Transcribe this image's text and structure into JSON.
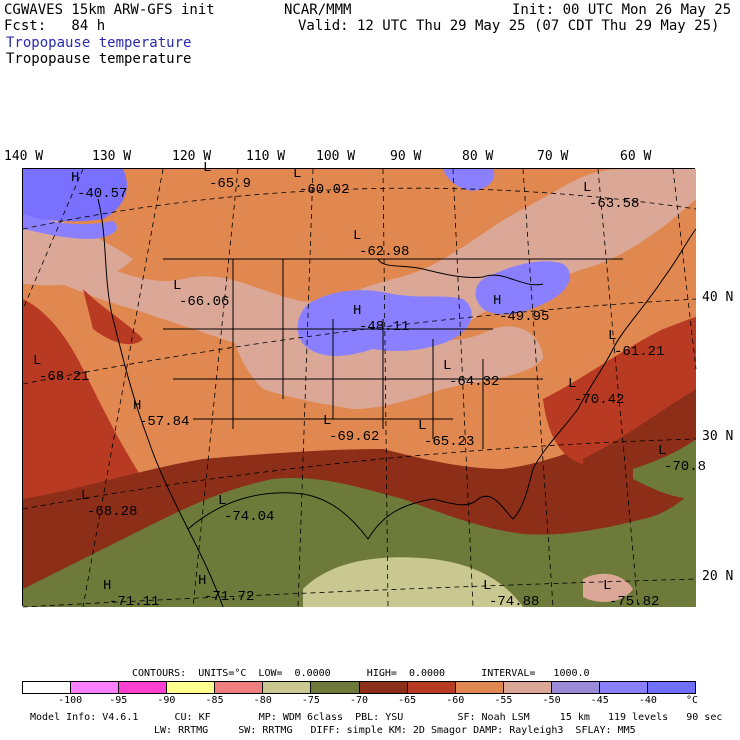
{
  "header": {
    "line1_left": "CGWAVES 15km ARW-GFS init",
    "line1_mid": "NCAR/MMM",
    "line1_right": "Init: 00 UTC Mon 26 May 25",
    "line2_left": "Fcst:   84 h",
    "line2_right": "Valid: 12 UTC Thu 29 May 25 (07 CDT Thu 29 May 25)",
    "field_title_1": "Tropopause temperature",
    "field_title_2": "Tropopause temperature"
  },
  "longitude_labels": [
    "140 W",
    "130 W",
    "120 W",
    "110 W",
    "100 W",
    "90 W",
    "80 W",
    "70 W",
    "60 W"
  ],
  "latitude_labels": [
    "40 N",
    "30 N",
    "20 N"
  ],
  "map_labels": [
    {
      "kind": "H",
      "value": "-40.57"
    },
    {
      "kind": "L",
      "value": "-65.9"
    },
    {
      "kind": "L",
      "value": "-60.02"
    },
    {
      "kind": "L",
      "value": "-62.98"
    },
    {
      "kind": "L",
      "value": "-63.58"
    },
    {
      "kind": "L",
      "value": "-66.06"
    },
    {
      "kind": "H",
      "value": "-48.11"
    },
    {
      "kind": "H",
      "value": "-49.95"
    },
    {
      "kind": "L",
      "value": "-61.21"
    },
    {
      "kind": "L",
      "value": "-68.21"
    },
    {
      "kind": "L",
      "value": "-64.32"
    },
    {
      "kind": "H",
      "value": "-57.84"
    },
    {
      "kind": "L",
      "value": "-70.42"
    },
    {
      "kind": "L",
      "value": "-69.62"
    },
    {
      "kind": "L",
      "value": "-65.23"
    },
    {
      "kind": "L",
      "value": "-70.8"
    },
    {
      "kind": "L",
      "value": "-68.28"
    },
    {
      "kind": "L",
      "value": "-74.04"
    },
    {
      "kind": "H",
      "value": "-71.11"
    },
    {
      "kind": "H",
      "value": "-71.72"
    },
    {
      "kind": "L",
      "value": "-74.88"
    },
    {
      "kind": "L",
      "value": "-75.82"
    }
  ],
  "contour_info": "CONTOURS:  UNITS=°C  LOW=  0.0000      HIGH=  0.0000      INTERVAL=   1000.0",
  "colorbar": {
    "colors": [
      "#ffffff",
      "#ff80ff",
      "#ff40d0",
      "#ffff90",
      "#f08080",
      "#c8c890",
      "#6e7a3a",
      "#8c2e18",
      "#b83a22",
      "#e08850",
      "#dba898",
      "#9a8ad8",
      "#8a80ff",
      "#7070ff"
    ],
    "labels": [
      "-100",
      "-95",
      "-90",
      "-85",
      "-80",
      "-75",
      "-70",
      "-65",
      "-60",
      "-55",
      "-50",
      "-45",
      "-40"
    ],
    "unit": "°C"
  },
  "model_info": {
    "line1": "Model Info: V4.6.1      CU: KF        MP: WDM 6class  PBL: YSU         SF: Noah LSM     15 km   119 levels   90 sec",
    "line2": "LW: RRTMG     SW: RRTMG   DIFF: simple KM: 2D Smagor DAMP: Rayleigh3  SFLAY: MM5"
  }
}
